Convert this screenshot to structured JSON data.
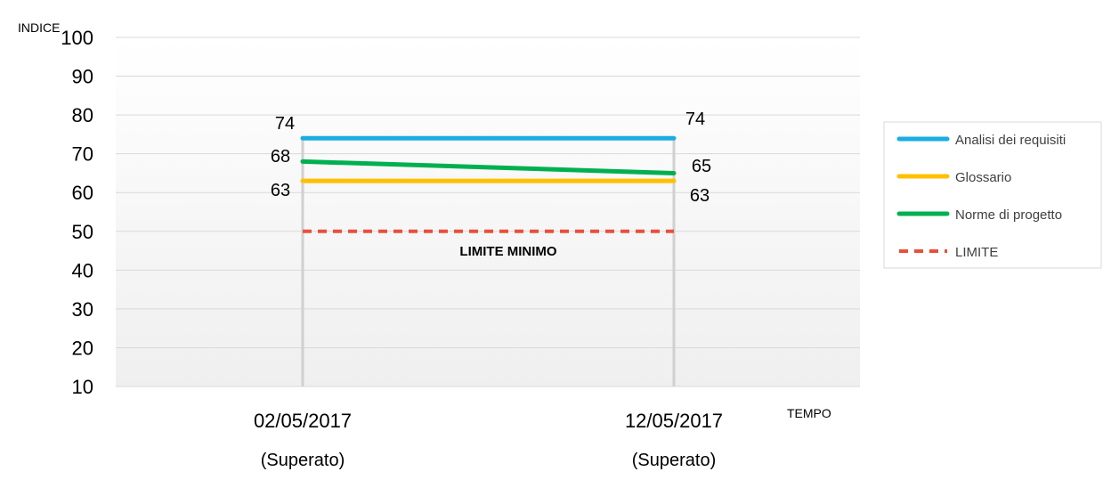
{
  "chart_data": {
    "type": "line",
    "ylabel": "INDICE",
    "xlabel": "TEMPO",
    "ylim": [
      10,
      100
    ],
    "yticks": [
      10,
      20,
      30,
      40,
      50,
      60,
      70,
      80,
      90,
      100
    ],
    "categories": [
      "02/05/2017",
      "12/05/2017"
    ],
    "category_sublabels": [
      "(Superato)",
      "(Superato)"
    ],
    "series": [
      {
        "name": "Analisi dei requisiti",
        "values": [
          74,
          74
        ],
        "color": "#1AADE4",
        "style": "solid"
      },
      {
        "name": "Glossario",
        "values": [
          63,
          63
        ],
        "color": "#FFC000",
        "style": "solid"
      },
      {
        "name": "Norme di progetto",
        "values": [
          68,
          65
        ],
        "color": "#00B050",
        "style": "solid"
      },
      {
        "name": "LIMITE",
        "values": [
          50,
          50
        ],
        "color": "#E8503A",
        "style": "dashed"
      }
    ],
    "data_labels": {
      "left": [
        "74",
        "68",
        "63"
      ],
      "right": [
        "74",
        "65",
        "63"
      ]
    },
    "annotation": "LIMITE MINIMO",
    "grid": true,
    "legend_position": "right"
  }
}
